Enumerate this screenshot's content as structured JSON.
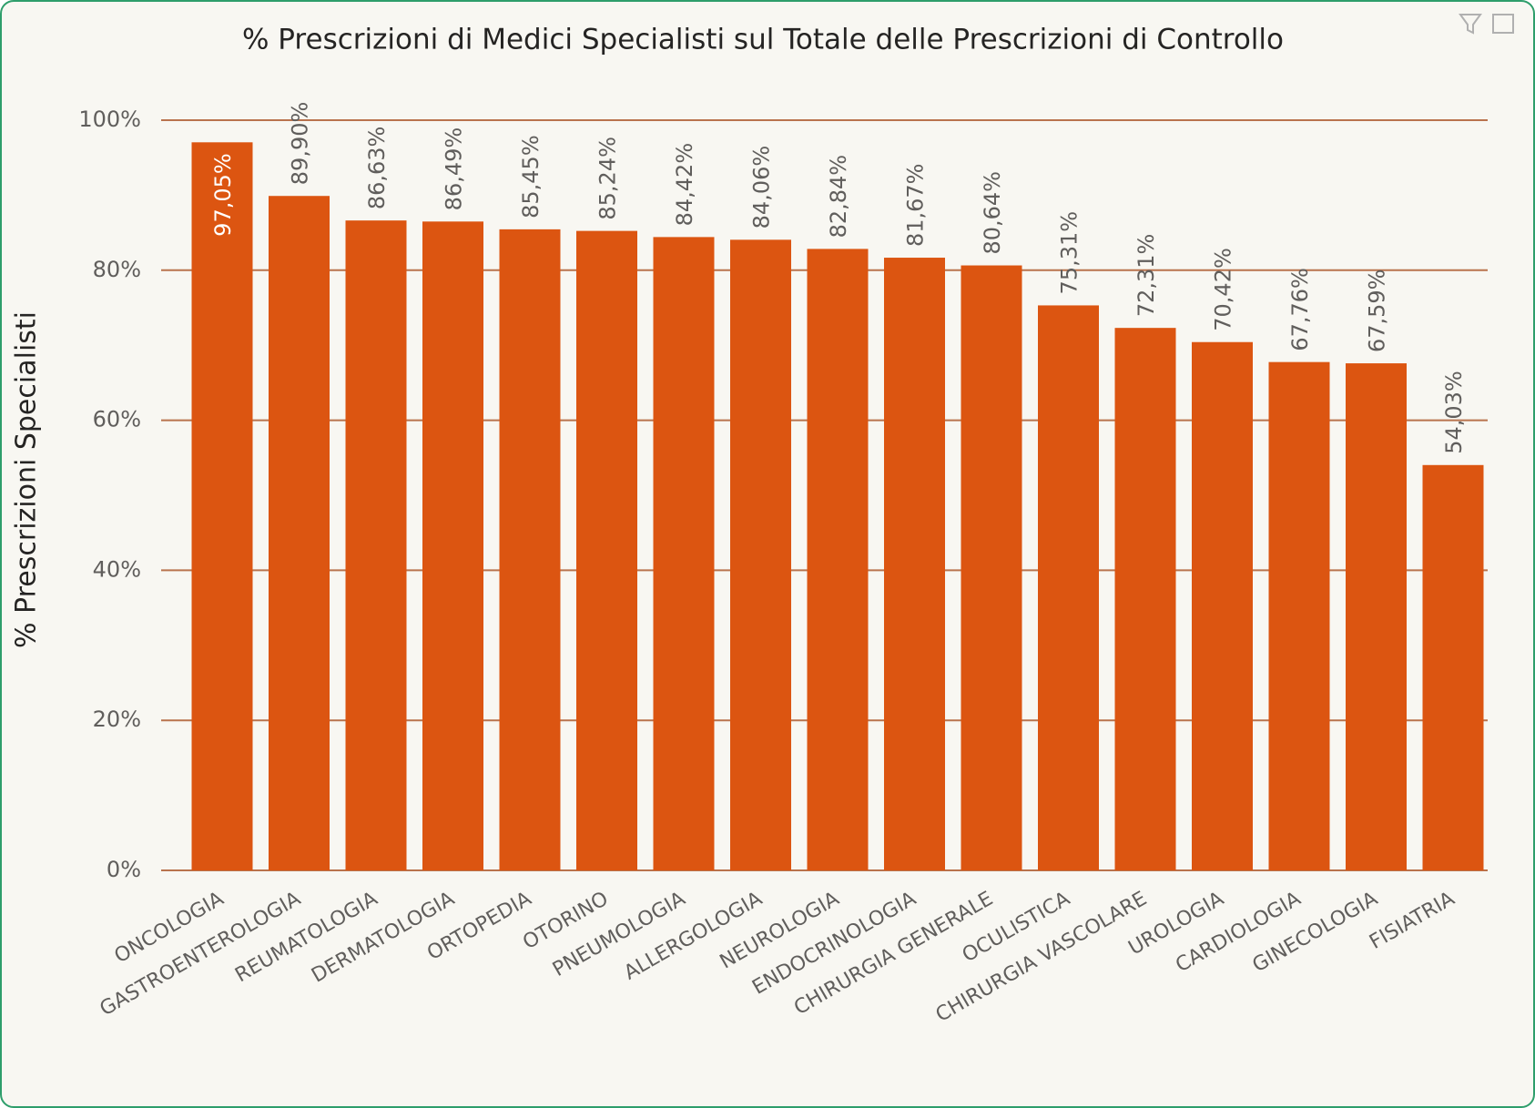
{
  "chart_data": {
    "type": "bar",
    "title": "% Prescrizioni di Medici Specialisti sul Totale delle Prescrizioni di Controllo",
    "y_label": "% Prescrizioni Specialisti",
    "categories": [
      "ONCOLOGIA",
      "GASTROENTEROLOGIA",
      "REUMATOLOGIA",
      "DERMATOLOGIA",
      "ORTOPEDIA",
      "OTORINO",
      "PNEUMOLOGIA",
      "ALLERGOLOGIA",
      "NEUROLOGIA",
      "ENDOCRINOLOGIA",
      "CHIRURGIA GENERALE",
      "OCULISTICA",
      "CHIRURGIA VASCOLARE",
      "UROLOGIA",
      "CARDIOLOGIA",
      "GINECOLOGIA",
      "FISIATRIA"
    ],
    "values": [
      97.05,
      89.9,
      86.63,
      86.49,
      85.45,
      85.24,
      84.42,
      84.06,
      82.84,
      81.67,
      80.64,
      75.31,
      72.31,
      70.42,
      67.76,
      67.59,
      54.03
    ],
    "value_labels": [
      "97,05%",
      "89,90%",
      "86,63%",
      "86,49%",
      "85,45%",
      "85,24%",
      "84,42%",
      "84,06%",
      "82,84%",
      "81,67%",
      "80,64%",
      "75,31%",
      "72,31%",
      "70,42%",
      "67,76%",
      "67,59%",
      "54,03%"
    ],
    "color": "#dc5511",
    "ylim": [
      0,
      100
    ],
    "yticks": [
      {
        "value": 0,
        "label": "0%"
      },
      {
        "value": 20,
        "label": "20%"
      },
      {
        "value": 40,
        "label": "40%"
      },
      {
        "value": 60,
        "label": "60%"
      },
      {
        "value": 80,
        "label": "80%"
      },
      {
        "value": 100,
        "label": "100%"
      }
    ],
    "grid": true
  }
}
